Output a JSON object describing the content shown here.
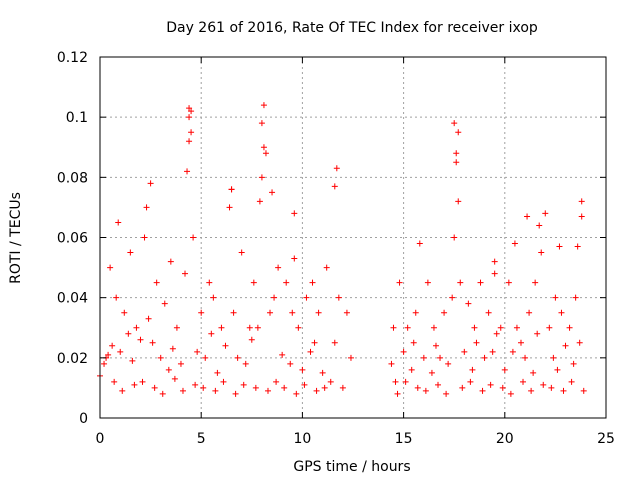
{
  "chart_data": {
    "type": "scatter",
    "title": "Day 261 of 2016, Rate Of TEC Index for receiver ixop",
    "xlabel": "GPS time / hours",
    "ylabel": "ROTI / TECUs",
    "xlim": [
      0,
      25
    ],
    "ylim": [
      0,
      0.12
    ],
    "xticks": [
      0,
      5,
      10,
      15,
      20,
      25
    ],
    "xtick_labels": [
      "0",
      "5",
      "10",
      "15",
      "20",
      "25"
    ],
    "yticks": [
      0,
      0.02,
      0.04,
      0.06,
      0.08,
      0.1,
      0.12
    ],
    "ytick_labels": [
      "0",
      "0.02",
      "0.04",
      "0.06",
      "0.08",
      "0.1",
      "0.12"
    ],
    "grid": true,
    "marker": "+",
    "series": [
      {
        "name": "ROTI",
        "color": "#ff0000",
        "x": [
          0.0,
          0.2,
          0.4,
          0.5,
          0.6,
          0.8,
          1.0,
          1.2,
          1.4,
          1.5,
          1.6,
          1.8,
          2.0,
          2.2,
          2.4,
          2.5,
          2.6,
          2.8,
          3.0,
          3.2,
          3.4,
          3.5,
          3.6,
          3.8,
          4.0,
          4.2,
          4.3,
          4.4,
          4.5,
          4.6,
          4.8,
          5.0,
          5.2,
          5.4,
          5.5,
          5.6,
          5.8,
          6.0,
          6.2,
          6.4,
          6.5,
          6.6,
          6.8,
          7.0,
          7.2,
          7.4,
          7.5,
          7.6,
          7.8,
          8.0,
          8.1,
          8.2,
          8.4,
          8.5,
          8.6,
          8.8,
          9.0,
          9.2,
          9.4,
          9.5,
          9.6,
          9.8,
          10.0,
          10.2,
          10.4,
          10.5,
          10.6,
          10.8,
          11.0,
          11.2,
          11.4,
          11.6,
          11.7,
          11.8,
          12.0,
          12.2,
          12.4,
          14.4,
          14.5,
          14.6,
          14.8,
          15.0,
          15.2,
          15.4,
          15.5,
          15.6,
          15.8,
          16.0,
          16.2,
          16.4,
          16.5,
          16.6,
          16.8,
          17.0,
          17.2,
          17.4,
          17.5,
          17.6,
          17.7,
          17.8,
          18.0,
          18.2,
          18.4,
          18.5,
          18.6,
          18.8,
          19.0,
          19.2,
          19.4,
          19.5,
          19.6,
          19.8,
          20.0,
          20.2,
          20.4,
          20.5,
          20.6,
          20.8,
          21.0,
          21.2,
          21.4,
          21.5,
          21.6,
          21.8,
          22.0,
          22.2,
          22.4,
          22.5,
          22.6,
          22.8,
          23.0,
          23.2,
          23.4,
          23.5,
          23.6,
          23.7,
          23.8,
          0.3,
          0.7,
          1.1,
          1.7,
          2.1,
          2.7,
          3.1,
          3.7,
          4.1,
          4.7,
          5.1,
          5.7,
          6.1,
          6.7,
          7.1,
          7.7,
          8.3,
          8.7,
          9.1,
          9.7,
          10.1,
          10.7,
          11.1,
          14.7,
          15.1,
          15.7,
          16.1,
          16.7,
          17.1,
          17.9,
          18.3,
          18.9,
          19.3,
          19.9,
          20.3,
          20.9,
          21.3,
          21.9,
          22.3,
          22.9,
          23.3,
          23.9,
          0.9,
          2.3,
          4.4,
          4.4,
          4.5,
          6.5,
          7.9,
          8.0,
          8.1,
          9.6,
          11.6,
          17.6,
          17.7,
          17.5,
          19.5,
          21.1,
          21.7,
          22.7,
          23.8
        ],
        "y": [
          0.014,
          0.018,
          0.021,
          0.05,
          0.024,
          0.04,
          0.022,
          0.035,
          0.028,
          0.055,
          0.019,
          0.03,
          0.026,
          0.06,
          0.033,
          0.078,
          0.025,
          0.045,
          0.02,
          0.038,
          0.016,
          0.052,
          0.023,
          0.03,
          0.018,
          0.048,
          0.082,
          0.103,
          0.095,
          0.06,
          0.022,
          0.035,
          0.02,
          0.045,
          0.028,
          0.04,
          0.015,
          0.03,
          0.024,
          0.07,
          0.076,
          0.035,
          0.02,
          0.055,
          0.018,
          0.03,
          0.026,
          0.045,
          0.03,
          0.08,
          0.104,
          0.088,
          0.035,
          0.075,
          0.04,
          0.05,
          0.021,
          0.045,
          0.018,
          0.035,
          0.068,
          0.03,
          0.016,
          0.04,
          0.022,
          0.045,
          0.025,
          0.035,
          0.015,
          0.05,
          0.012,
          0.025,
          0.083,
          0.04,
          0.01,
          0.035,
          0.02,
          0.018,
          0.03,
          0.012,
          0.045,
          0.022,
          0.03,
          0.016,
          0.025,
          0.035,
          0.058,
          0.02,
          0.045,
          0.015,
          0.03,
          0.024,
          0.02,
          0.035,
          0.018,
          0.04,
          0.098,
          0.088,
          0.072,
          0.045,
          0.022,
          0.038,
          0.016,
          0.03,
          0.025,
          0.045,
          0.02,
          0.035,
          0.022,
          0.048,
          0.028,
          0.03,
          0.016,
          0.045,
          0.022,
          0.058,
          0.03,
          0.025,
          0.02,
          0.035,
          0.015,
          0.045,
          0.028,
          0.055,
          0.068,
          0.03,
          0.02,
          0.04,
          0.016,
          0.035,
          0.024,
          0.03,
          0.018,
          0.04,
          0.057,
          0.025,
          0.072,
          0.02,
          0.012,
          0.009,
          0.011,
          0.012,
          0.01,
          0.008,
          0.013,
          0.009,
          0.011,
          0.01,
          0.009,
          0.012,
          0.008,
          0.011,
          0.01,
          0.009,
          0.012,
          0.01,
          0.008,
          0.011,
          0.009,
          0.01,
          0.008,
          0.012,
          0.01,
          0.009,
          0.011,
          0.008,
          0.01,
          0.012,
          0.009,
          0.011,
          0.01,
          0.008,
          0.012,
          0.009,
          0.011,
          0.01,
          0.009,
          0.012,
          0.009,
          0.065,
          0.07,
          0.1,
          0.092,
          0.102,
          0.076,
          0.072,
          0.098,
          0.09,
          0.053,
          0.077,
          0.085,
          0.095,
          0.06,
          0.052,
          0.067,
          0.064,
          0.057,
          0.067
        ]
      }
    ]
  }
}
